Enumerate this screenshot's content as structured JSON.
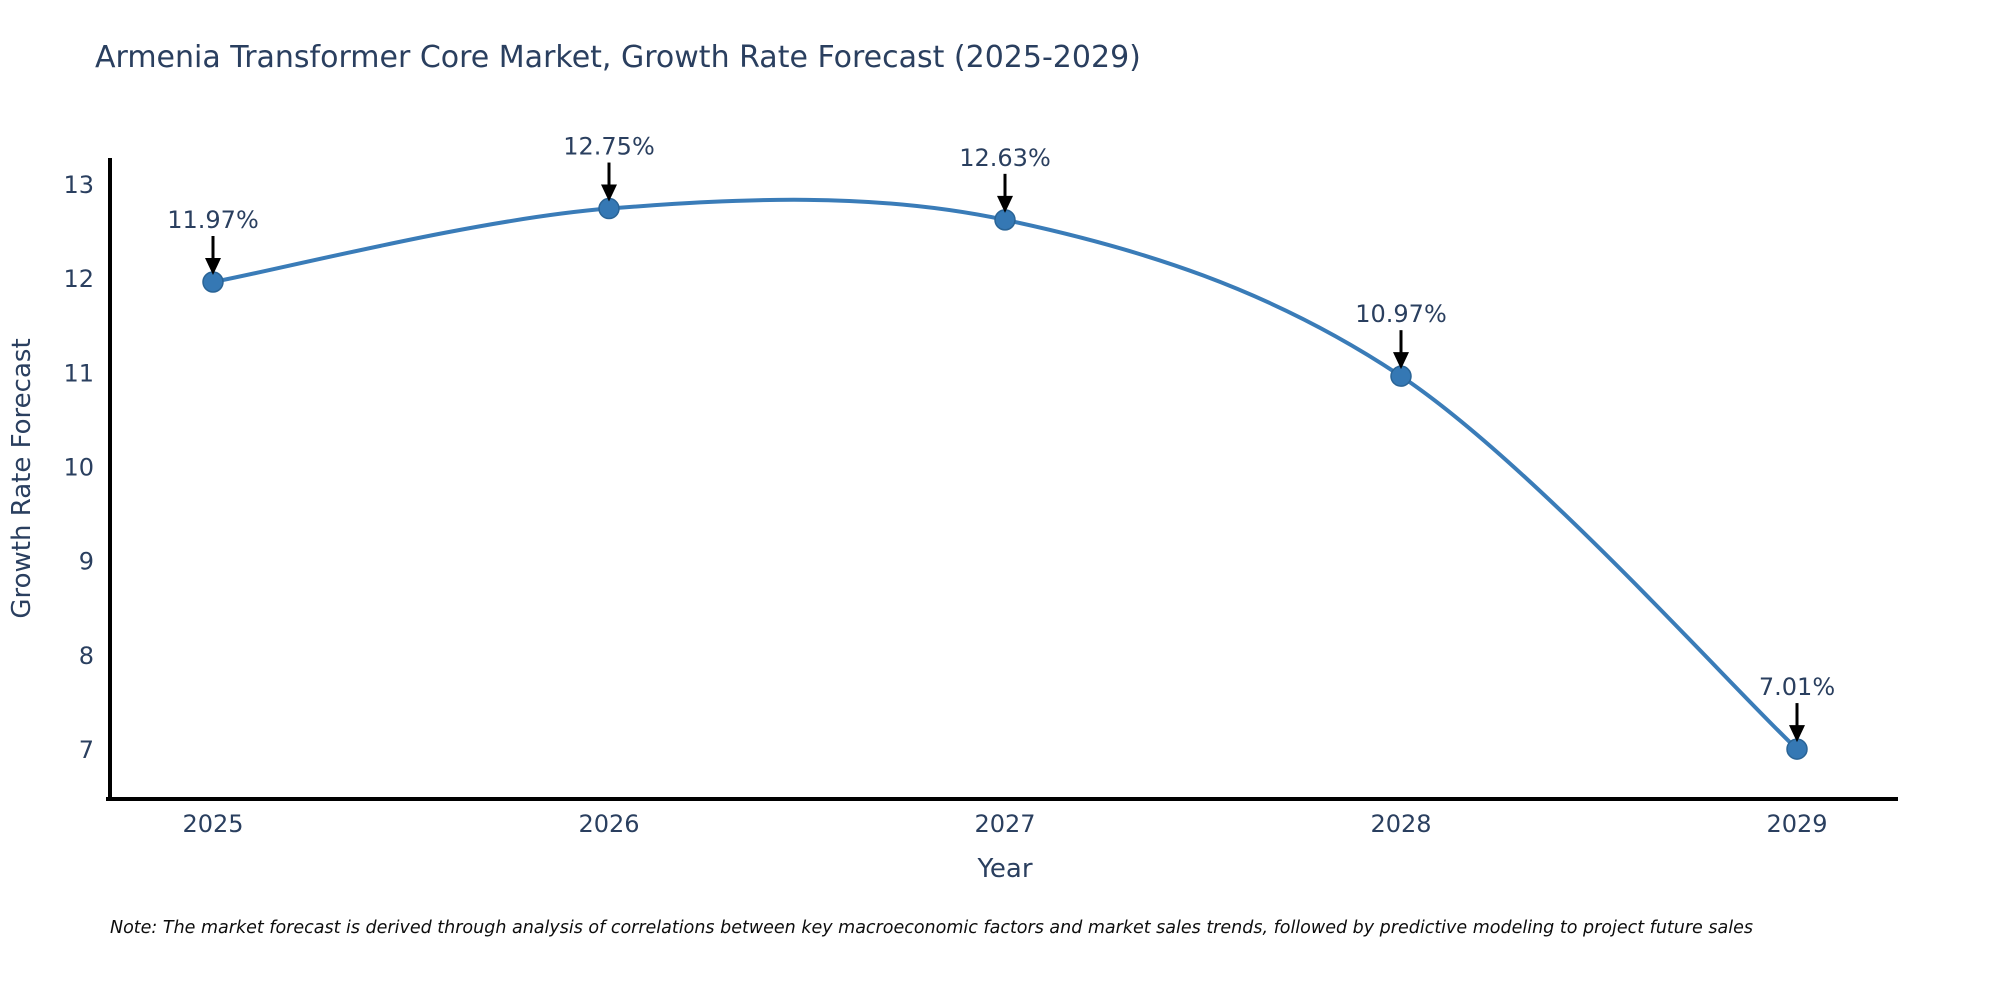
{
  "title": "Armenia Transformer Core Market, Growth Rate Forecast (2025-2029)",
  "note": "Note: The market forecast is derived through analysis of correlations between key macroeconomic factors and market sales trends, followed by predictive modeling to project future sales",
  "colors": {
    "title_text": "#2a3f5f",
    "tick_text": "#2a3f5f",
    "annotation_text": "#2a3f5f",
    "line": "#3a7cb8",
    "marker_fill": "#3578b4",
    "marker_edge": "#2a6496",
    "axis_spine": "#000000",
    "arrow": "#000000",
    "note_text": "#0d0d0d",
    "background": "#ffffff"
  },
  "chart_data": {
    "type": "line",
    "title": "Armenia Transformer Core Market, Growth Rate Forecast (2025-2029)",
    "xlabel": "Year",
    "ylabel": "Growth Rate Forecast",
    "x": [
      2025,
      2026,
      2027,
      2028,
      2029
    ],
    "values": [
      11.97,
      12.75,
      12.63,
      10.97,
      7.01
    ],
    "point_labels": [
      "11.97%",
      "12.75%",
      "12.63%",
      "10.97%",
      "7.01%"
    ],
    "xticks": [
      "2025",
      "2026",
      "2027",
      "2028",
      "2029"
    ],
    "yticks": [
      7,
      8,
      9,
      10,
      11,
      12,
      13
    ],
    "ylim": [
      6.5,
      13.3
    ],
    "line_shape": "spline",
    "markers": true,
    "grid": false,
    "legend": "none",
    "annotation_arrows": true
  }
}
